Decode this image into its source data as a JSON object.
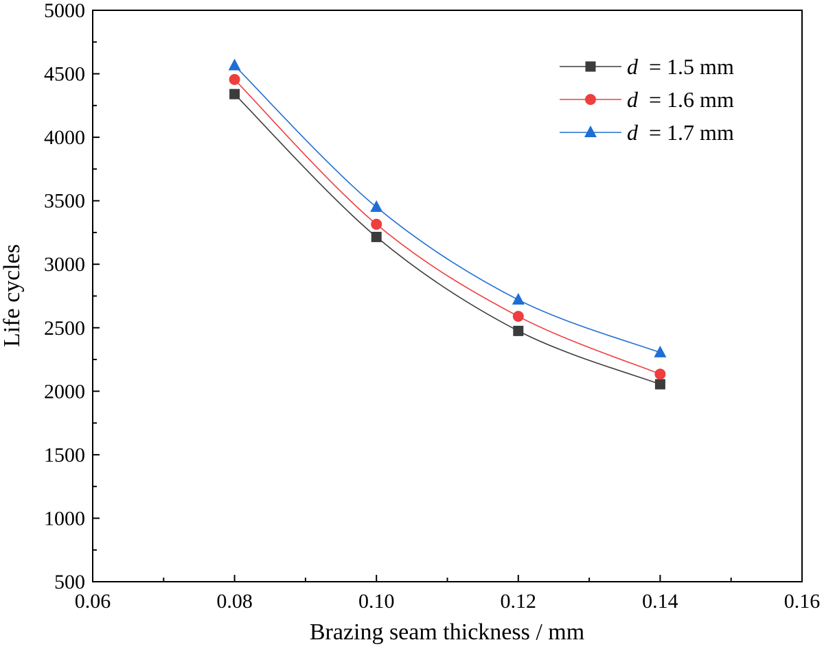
{
  "chart_data": {
    "type": "line",
    "title": "",
    "xlabel": "Brazing seam thickness / mm",
    "ylabel": "Life cycles",
    "xlim": [
      0.06,
      0.16
    ],
    "ylim": [
      500,
      5000
    ],
    "xticks": [
      "0.06",
      "0.08",
      "0.10",
      "0.12",
      "0.14",
      "0.16"
    ],
    "yticks": [
      "500",
      "1000",
      "1500",
      "2000",
      "2500",
      "3000",
      "3500",
      "4000",
      "4500",
      "5000"
    ],
    "x": [
      0.08,
      0.1,
      0.12,
      0.14
    ],
    "legend_position": "top-right",
    "grid": false,
    "series": [
      {
        "name": "d = 1.5 mm",
        "var": "d",
        "rest": " = 1.5 mm",
        "color": "#3c3c3c",
        "marker": "square",
        "values": [
          4340,
          3215,
          2475,
          2055
        ]
      },
      {
        "name": "d = 1.6 mm",
        "var": "d",
        "rest": " = 1.6 mm",
        "color": "#ee3e3e",
        "marker": "circle",
        "values": [
          4455,
          3315,
          2590,
          2135
        ]
      },
      {
        "name": "d = 1.7 mm",
        "var": "d",
        "rest": " = 1.7 mm",
        "color": "#1f6ed4",
        "marker": "triangle",
        "values": [
          4565,
          3450,
          2720,
          2305
        ]
      }
    ]
  }
}
